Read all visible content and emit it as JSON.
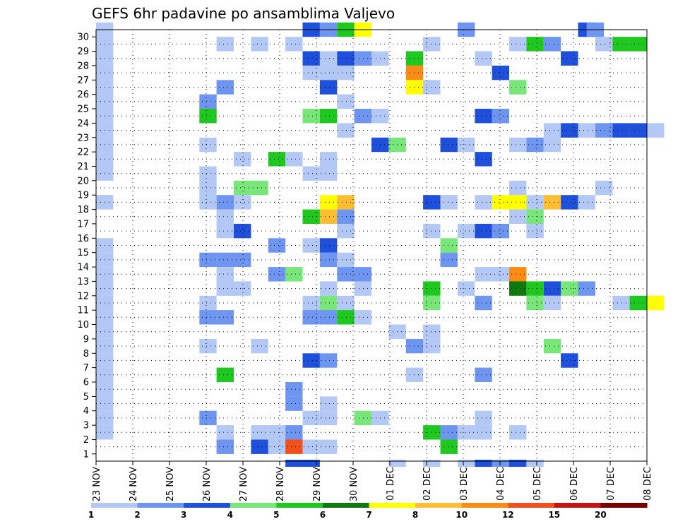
{
  "chart_data": {
    "type": "heatmap",
    "title": "GEFS 6hr padavine po ansamblima Valjevo",
    "xlabel": "",
    "ylabel": "",
    "y_ticks": [
      1,
      2,
      3,
      4,
      5,
      6,
      7,
      8,
      9,
      10,
      11,
      12,
      13,
      14,
      15,
      16,
      17,
      18,
      19,
      20,
      21,
      22,
      23,
      24,
      25,
      26,
      27,
      28,
      29,
      30
    ],
    "x_ticks": [
      "23 NOV",
      "24 NOV",
      "25 NOV",
      "26 NOV",
      "27 NOV",
      "28 NOV",
      "29 NOV",
      "30 NOV",
      "01 DEC",
      "02 DEC",
      "03 DEC",
      "04 DEC",
      "05 DEC",
      "06 DEC",
      "07 DEC",
      "08 DEC"
    ],
    "x_step": "6hr",
    "grid": true,
    "legend_position": "bottom",
    "color_bins": [
      {
        "min": 1,
        "color": "#b4c8f5"
      },
      {
        "min": 2,
        "color": "#6e96f0"
      },
      {
        "min": 3,
        "color": "#1e50dc"
      },
      {
        "min": 4,
        "color": "#78e678"
      },
      {
        "min": 5,
        "color": "#1ec81e"
      },
      {
        "min": 6,
        "color": "#0f780f"
      },
      {
        "min": 7,
        "color": "#ffff00"
      },
      {
        "min": 8,
        "color": "#ffbe32"
      },
      {
        "min": 10,
        "color": "#fa8c14"
      },
      {
        "min": 12,
        "color": "#f0501e"
      },
      {
        "min": 15,
        "color": "#c81414"
      },
      {
        "min": 20,
        "color": "#780000"
      }
    ],
    "legend_labels": [
      "1",
      "2",
      "3",
      "4",
      "5",
      "6",
      "7",
      "8",
      "10",
      "12",
      "15",
      "20"
    ],
    "cells": [
      [
        0,
        30,
        1
      ],
      [
        12,
        30,
        3
      ],
      [
        13,
        30,
        2
      ],
      [
        14,
        30,
        5
      ],
      [
        15,
        30,
        7
      ],
      [
        21,
        30,
        2
      ],
      [
        28,
        30,
        3
      ],
      [
        28.5,
        30,
        2
      ],
      [
        0,
        29,
        1
      ],
      [
        7,
        29,
        1
      ],
      [
        9,
        29,
        1
      ],
      [
        11,
        29,
        1
      ],
      [
        19,
        29,
        1
      ],
      [
        24,
        29,
        1
      ],
      [
        25,
        29,
        5
      ],
      [
        26,
        29,
        2
      ],
      [
        29,
        29,
        1
      ],
      [
        30,
        29,
        5
      ],
      [
        31,
        29,
        5
      ],
      [
        0,
        28,
        1
      ],
      [
        12,
        28,
        3
      ],
      [
        13,
        28,
        1
      ],
      [
        14,
        28,
        3
      ],
      [
        15,
        28,
        2
      ],
      [
        16,
        28,
        1
      ],
      [
        18,
        28,
        5
      ],
      [
        22,
        28,
        1
      ],
      [
        27,
        28,
        3
      ],
      [
        0,
        27,
        1
      ],
      [
        12,
        27,
        1
      ],
      [
        13,
        27,
        1
      ],
      [
        14,
        27,
        1
      ],
      [
        18,
        27,
        10
      ],
      [
        23,
        27,
        3
      ],
      [
        0,
        26,
        1
      ],
      [
        7,
        26,
        2
      ],
      [
        13,
        26,
        3
      ],
      [
        18,
        26,
        7
      ],
      [
        19,
        26,
        1
      ],
      [
        24,
        26,
        4
      ],
      [
        0,
        25,
        1
      ],
      [
        6,
        25,
        2
      ],
      [
        14,
        25,
        1
      ],
      [
        0,
        24,
        1
      ],
      [
        6,
        24,
        5
      ],
      [
        12,
        24,
        4
      ],
      [
        13,
        24,
        5
      ],
      [
        15,
        24,
        2
      ],
      [
        16,
        24,
        1
      ],
      [
        22,
        24,
        3
      ],
      [
        23,
        24,
        2
      ],
      [
        0,
        23,
        1
      ],
      [
        14,
        23,
        1
      ],
      [
        26,
        23,
        1
      ],
      [
        27,
        23,
        3
      ],
      [
        28,
        23,
        1
      ],
      [
        29,
        23,
        2
      ],
      [
        30,
        23,
        3
      ],
      [
        31,
        23,
        3
      ],
      [
        32,
        23,
        1
      ],
      [
        0,
        22,
        1
      ],
      [
        6,
        22,
        1
      ],
      [
        16,
        22,
        3
      ],
      [
        17,
        22,
        4
      ],
      [
        20,
        22,
        3
      ],
      [
        21,
        22,
        1
      ],
      [
        24,
        22,
        1
      ],
      [
        25,
        22,
        2
      ],
      [
        26,
        22,
        1
      ],
      [
        0,
        21,
        1
      ],
      [
        8,
        21,
        1
      ],
      [
        10,
        21,
        5
      ],
      [
        11,
        21,
        1
      ],
      [
        13,
        21,
        1
      ],
      [
        22,
        21,
        3
      ],
      [
        0,
        20,
        1
      ],
      [
        6,
        20,
        1
      ],
      [
        12,
        20,
        1
      ],
      [
        13,
        20,
        1
      ],
      [
        6,
        19,
        1
      ],
      [
        8,
        19,
        4
      ],
      [
        9,
        19,
        4
      ],
      [
        24,
        19,
        1
      ],
      [
        29,
        19,
        1
      ],
      [
        0,
        18,
        1
      ],
      [
        7,
        18,
        2
      ],
      [
        6,
        18,
        1
      ],
      [
        8,
        18,
        1
      ],
      [
        13,
        18,
        7
      ],
      [
        14,
        18,
        8
      ],
      [
        19,
        18,
        3
      ],
      [
        20,
        18,
        1
      ],
      [
        22,
        18,
        1
      ],
      [
        23,
        18,
        7
      ],
      [
        24,
        18,
        7
      ],
      [
        25,
        18,
        1
      ],
      [
        26,
        18,
        8
      ],
      [
        27,
        18,
        3
      ],
      [
        28,
        18,
        1
      ],
      [
        7,
        17,
        1
      ],
      [
        12,
        17,
        5
      ],
      [
        13,
        17,
        8
      ],
      [
        14,
        17,
        2
      ],
      [
        24,
        17,
        1
      ],
      [
        25,
        17,
        4
      ],
      [
        7,
        16,
        1
      ],
      [
        8,
        16,
        3
      ],
      [
        14,
        16,
        1
      ],
      [
        19,
        16,
        1
      ],
      [
        21,
        16,
        1
      ],
      [
        22,
        16,
        3
      ],
      [
        23,
        16,
        2
      ],
      [
        25,
        16,
        1
      ],
      [
        0,
        15,
        1
      ],
      [
        10,
        15,
        2
      ],
      [
        12,
        15,
        1
      ],
      [
        13,
        15,
        3
      ],
      [
        20,
        15,
        4
      ],
      [
        0,
        14,
        1
      ],
      [
        6,
        14,
        2
      ],
      [
        7,
        14,
        2
      ],
      [
        8,
        14,
        2
      ],
      [
        13,
        14,
        2
      ],
      [
        14,
        14,
        1
      ],
      [
        20,
        14,
        2
      ],
      [
        0,
        13,
        1
      ],
      [
        7,
        13,
        1
      ],
      [
        10,
        13,
        2
      ],
      [
        11,
        13,
        4
      ],
      [
        14,
        13,
        2
      ],
      [
        15,
        13,
        2
      ],
      [
        22,
        13,
        1
      ],
      [
        23,
        13,
        1
      ],
      [
        24,
        13,
        10
      ],
      [
        0,
        12,
        1
      ],
      [
        7,
        12,
        1
      ],
      [
        8,
        12,
        1
      ],
      [
        13,
        12,
        1
      ],
      [
        15,
        12,
        1
      ],
      [
        19,
        12,
        5
      ],
      [
        21,
        12,
        1
      ],
      [
        24,
        12,
        6
      ],
      [
        25,
        12,
        5
      ],
      [
        26,
        12,
        3
      ],
      [
        27,
        12,
        4
      ],
      [
        28,
        12,
        2
      ],
      [
        0,
        11,
        1
      ],
      [
        6,
        11,
        1
      ],
      [
        12,
        11,
        1
      ],
      [
        13,
        11,
        4
      ],
      [
        14,
        11,
        1
      ],
      [
        19,
        11,
        4
      ],
      [
        22,
        11,
        2
      ],
      [
        25,
        11,
        4
      ],
      [
        26,
        11,
        1
      ],
      [
        30,
        11,
        1
      ],
      [
        31,
        11,
        5
      ],
      [
        32,
        11,
        7
      ],
      [
        0,
        10,
        1
      ],
      [
        6,
        10,
        2
      ],
      [
        7,
        10,
        2
      ],
      [
        12,
        10,
        2
      ],
      [
        13,
        10,
        2
      ],
      [
        14,
        10,
        5
      ],
      [
        15,
        10,
        1
      ],
      [
        0,
        9,
        1
      ],
      [
        17,
        9,
        1
      ],
      [
        19,
        9,
        1
      ],
      [
        0,
        8,
        1
      ],
      [
        6,
        8,
        1
      ],
      [
        9,
        8,
        1
      ],
      [
        18,
        8,
        2
      ],
      [
        19,
        8,
        1
      ],
      [
        26,
        8,
        4
      ],
      [
        0,
        7,
        1
      ],
      [
        12,
        7,
        3
      ],
      [
        13,
        7,
        2
      ],
      [
        27,
        7,
        3
      ],
      [
        0,
        6,
        1
      ],
      [
        7,
        6,
        5
      ],
      [
        18,
        6,
        1
      ],
      [
        22,
        6,
        2
      ],
      [
        0,
        5,
        1
      ],
      [
        11,
        5,
        2
      ],
      [
        0,
        4,
        1
      ],
      [
        11,
        4,
        2
      ],
      [
        13,
        4,
        1
      ],
      [
        0,
        3,
        1
      ],
      [
        6,
        3,
        2
      ],
      [
        12,
        3,
        1
      ],
      [
        13,
        3,
        1
      ],
      [
        15,
        3,
        4
      ],
      [
        16,
        3,
        1
      ],
      [
        22,
        3,
        1
      ],
      [
        0,
        2,
        1
      ],
      [
        7,
        2,
        1
      ],
      [
        9,
        2,
        1
      ],
      [
        10,
        2,
        1
      ],
      [
        11,
        2,
        2
      ],
      [
        19,
        2,
        5
      ],
      [
        20,
        2,
        2
      ],
      [
        21,
        2,
        1
      ],
      [
        22,
        2,
        1
      ],
      [
        24,
        2,
        1
      ],
      [
        7,
        1,
        2
      ],
      [
        9,
        1,
        3
      ],
      [
        10,
        1,
        1
      ],
      [
        11,
        1,
        14
      ],
      [
        12,
        1,
        1
      ],
      [
        13,
        1,
        1
      ],
      [
        20,
        1,
        5
      ],
      [
        11,
        0,
        3
      ],
      [
        12,
        0,
        3
      ],
      [
        17,
        0,
        1
      ],
      [
        19,
        0,
        1
      ],
      [
        21,
        0,
        1
      ],
      [
        22,
        0,
        3
      ],
      [
        23,
        0,
        2
      ],
      [
        24,
        0,
        3
      ],
      [
        25,
        0,
        1
      ]
    ]
  }
}
